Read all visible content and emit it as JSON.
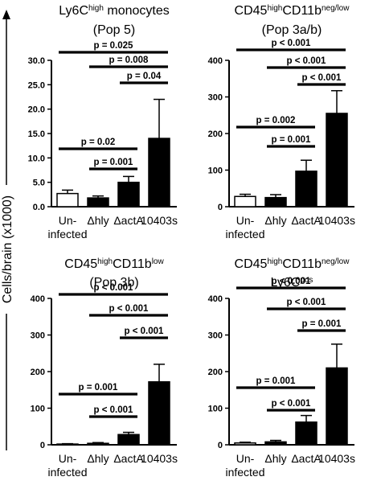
{
  "figure": {
    "ylabel": "Cells/brain (x1000)"
  },
  "chart_data": [
    {
      "type": "bar",
      "title_lines": [
        [
          {
            "t": "Ly6C"
          },
          {
            "t": "high",
            "sup": true
          },
          {
            "t": " monocytes"
          }
        ],
        [
          {
            "t": "(Pop 5)"
          }
        ]
      ],
      "categories": [
        "Un-\ninfected",
        "Δhly",
        "ΔactA",
        "10403s"
      ],
      "values": [
        2.7,
        1.8,
        5.0,
        14.0
      ],
      "errors": [
        0.7,
        0.4,
        1.2,
        8.0
      ],
      "bar_colors": [
        "#ffffff",
        "#000000",
        "#000000",
        "#000000"
      ],
      "ylim": [
        0,
        30
      ],
      "yticks": [
        "0.0",
        "5.0",
        "10.0",
        "15.0",
        "20.0",
        "25.0",
        "30.0"
      ],
      "significance": [
        {
          "from": 0,
          "to": 3,
          "label": "p = 0.025"
        },
        {
          "from": 1,
          "to": 3,
          "label": "p = 0.008"
        },
        {
          "from": 2,
          "to": 3,
          "label": "p = 0.04"
        },
        {
          "from": 0,
          "to": 2,
          "label": "p = 0.02"
        },
        {
          "from": 1,
          "to": 2,
          "label": "p = 0.001"
        }
      ]
    },
    {
      "type": "bar",
      "title_lines": [
        [
          {
            "t": "CD45"
          },
          {
            "t": "high",
            "sup": true
          },
          {
            "t": "CD11b"
          },
          {
            "t": "neg/low",
            "sup": true
          }
        ],
        [
          {
            "t": "(Pop 3a/b)"
          }
        ]
      ],
      "categories": [
        "Un-\ninfected",
        "Δhly",
        "ΔactA",
        "10403s"
      ],
      "values": [
        28,
        25,
        97,
        255
      ],
      "errors": [
        6,
        8,
        30,
        62
      ],
      "bar_colors": [
        "#ffffff",
        "#000000",
        "#000000",
        "#000000"
      ],
      "ylim": [
        0,
        400
      ],
      "yticks": [
        "0",
        "100",
        "200",
        "300",
        "400"
      ],
      "significance": [
        {
          "from": 0,
          "to": 3,
          "label": "p < 0.001"
        },
        {
          "from": 1,
          "to": 3,
          "label": "p < 0.001"
        },
        {
          "from": 2,
          "to": 3,
          "label": "p < 0.001"
        },
        {
          "from": 0,
          "to": 2,
          "label": "p = 0.002"
        },
        {
          "from": 1,
          "to": 2,
          "label": "p = 0.001"
        }
      ]
    },
    {
      "type": "bar",
      "title_lines": [
        [
          {
            "t": "CD45"
          },
          {
            "t": "high",
            "sup": true
          },
          {
            "t": "CD11b"
          },
          {
            "t": "low",
            "sup": true
          }
        ],
        [
          {
            "t": "(Pop 3b)"
          }
        ]
      ],
      "categories": [
        "Un-\ninfected",
        "Δhly",
        "ΔactA",
        "10403s"
      ],
      "values": [
        2,
        4,
        28,
        172
      ],
      "errors": [
        1,
        2,
        6,
        48
      ],
      "bar_colors": [
        "#ffffff",
        "#000000",
        "#000000",
        "#000000"
      ],
      "ylim": [
        0,
        400
      ],
      "yticks": [
        "0",
        "100",
        "200",
        "300",
        "400"
      ],
      "significance": [
        {
          "from": 0,
          "to": 3,
          "label": "p < 0.001"
        },
        {
          "from": 1,
          "to": 3,
          "label": "p < 0.001"
        },
        {
          "from": 2,
          "to": 3,
          "label": "p < 0.001"
        },
        {
          "from": 0,
          "to": 2,
          "label": "p = 0.001"
        },
        {
          "from": 1,
          "to": 2,
          "label": "p < 0.001"
        }
      ]
    },
    {
      "type": "bar",
      "title_lines": [
        [
          {
            "t": "CD45"
          },
          {
            "t": "high",
            "sup": true
          },
          {
            "t": "CD11b"
          },
          {
            "t": "neg/low",
            "sup": true
          }
        ],
        [
          {
            "t": "Ly6C"
          },
          {
            "t": "pos",
            "sup": true
          }
        ]
      ],
      "categories": [
        "Un-\ninfected",
        "Δhly",
        "ΔactA",
        "10403s"
      ],
      "values": [
        5,
        8,
        62,
        210
      ],
      "errors": [
        2,
        4,
        18,
        65
      ],
      "bar_colors": [
        "#ffffff",
        "#000000",
        "#000000",
        "#000000"
      ],
      "ylim": [
        0,
        400
      ],
      "yticks": [
        "0",
        "100",
        "200",
        "300",
        "400"
      ],
      "significance": [
        {
          "from": 0,
          "to": 3,
          "label": "p < 0.001"
        },
        {
          "from": 1,
          "to": 3,
          "label": "p < 0.001"
        },
        {
          "from": 2,
          "to": 3,
          "label": "p = 0.001"
        },
        {
          "from": 0,
          "to": 2,
          "label": "p = 0.001"
        },
        {
          "from": 1,
          "to": 2,
          "label": "p < 0.001"
        }
      ]
    }
  ]
}
